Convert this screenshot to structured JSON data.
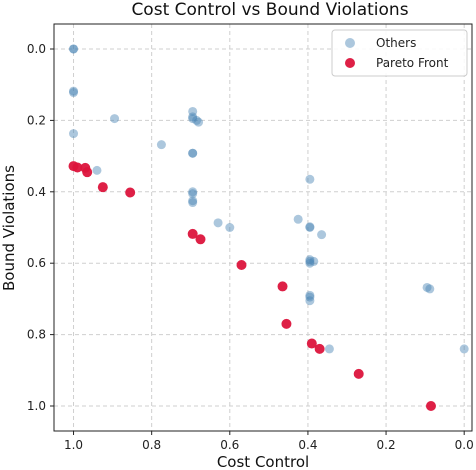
{
  "chart_data": {
    "type": "scatter",
    "title": "Cost Control vs Bound Violations",
    "xlabel": "Cost Control",
    "ylabel": "Bound Violations",
    "xlim": [
      1.05,
      -0.02
    ],
    "ylim": [
      1.07,
      -0.07
    ],
    "x_reversed": true,
    "y_reversed": true,
    "x_ticks": [
      1.0,
      0.8,
      0.6,
      0.4,
      0.2,
      0.0
    ],
    "x_tick_labels": [
      "1.0",
      "0.8",
      "0.6",
      "0.4",
      "0.2",
      "0.0"
    ],
    "y_ticks": [
      0.0,
      0.2,
      0.4,
      0.6,
      0.8,
      1.0
    ],
    "y_tick_labels": [
      "0.0",
      "0.2",
      "0.4",
      "0.6",
      "0.8",
      "1.0"
    ],
    "grid": true,
    "legend": "top-right",
    "series": [
      {
        "name": "Others",
        "color": "#4682b4",
        "points": [
          [
            1.0,
            0.0
          ],
          [
            1.0,
            0.0
          ],
          [
            1.0,
            0.118
          ],
          [
            1.0,
            0.122
          ],
          [
            1.0,
            0.237
          ],
          [
            0.895,
            0.195
          ],
          [
            0.775,
            0.268
          ],
          [
            0.94,
            0.34
          ],
          [
            0.695,
            0.175
          ],
          [
            0.695,
            0.19
          ],
          [
            0.695,
            0.195
          ],
          [
            0.685,
            0.2
          ],
          [
            0.68,
            0.205
          ],
          [
            0.695,
            0.292
          ],
          [
            0.695,
            0.292
          ],
          [
            0.695,
            0.4
          ],
          [
            0.695,
            0.405
          ],
          [
            0.695,
            0.425
          ],
          [
            0.695,
            0.43
          ],
          [
            0.63,
            0.487
          ],
          [
            0.6,
            0.5
          ],
          [
            0.425,
            0.477
          ],
          [
            0.395,
            0.365
          ],
          [
            0.395,
            0.498
          ],
          [
            0.395,
            0.5
          ],
          [
            0.365,
            0.52
          ],
          [
            0.395,
            0.59
          ],
          [
            0.395,
            0.595
          ],
          [
            0.395,
            0.6
          ],
          [
            0.385,
            0.595
          ],
          [
            0.395,
            0.69
          ],
          [
            0.395,
            0.695
          ],
          [
            0.395,
            0.705
          ],
          [
            0.345,
            0.84
          ],
          [
            0.095,
            0.668
          ],
          [
            0.088,
            0.672
          ],
          [
            0.0,
            0.84
          ]
        ]
      },
      {
        "name": "Pareto Front",
        "color": "#dc143c",
        "points": [
          [
            1.0,
            0.328
          ],
          [
            0.99,
            0.332
          ],
          [
            0.97,
            0.333
          ],
          [
            0.965,
            0.345
          ],
          [
            0.925,
            0.387
          ],
          [
            0.855,
            0.402
          ],
          [
            0.695,
            0.518
          ],
          [
            0.675,
            0.533
          ],
          [
            0.57,
            0.605
          ],
          [
            0.465,
            0.665
          ],
          [
            0.455,
            0.77
          ],
          [
            0.39,
            0.825
          ],
          [
            0.37,
            0.84
          ],
          [
            0.27,
            0.91
          ],
          [
            0.085,
            1.0
          ]
        ]
      }
    ]
  }
}
